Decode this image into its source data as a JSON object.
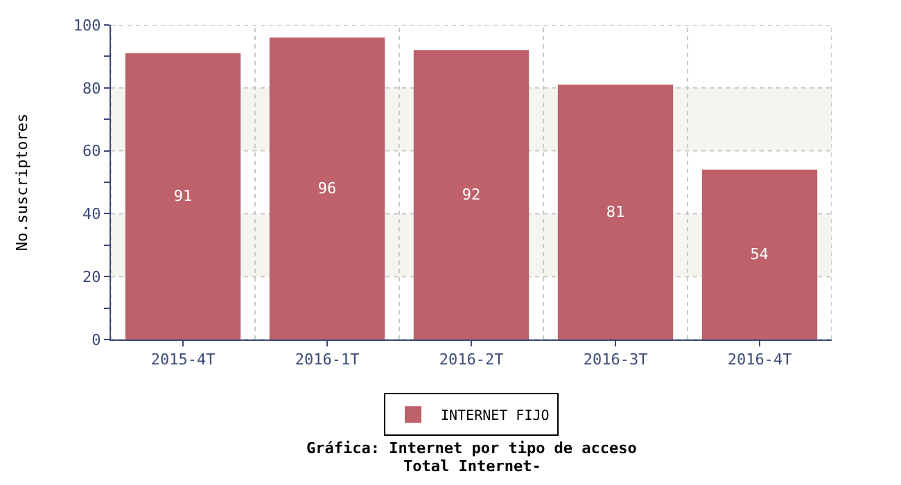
{
  "chart_data": {
    "type": "bar",
    "title": "Gráfica: Internet por tipo de acceso",
    "subtitle": "Total Internet-",
    "ylabel": "No.suscriptores",
    "categories": [
      "2015-4T",
      "2016-1T",
      "2016-2T",
      "2016-3T",
      "2016-4T"
    ],
    "series": [
      {
        "name": "INTERNET FIJO",
        "color": "#bf616a",
        "values": [
          91,
          96,
          92,
          81,
          54
        ]
      }
    ],
    "ylim": [
      0,
      100
    ],
    "yticks": [
      0,
      {
        "value": 10,
        "label": null
      },
      20,
      {
        "value": 30,
        "label": null
      },
      40,
      {
        "value": 50,
        "label": null
      },
      60,
      {
        "value": 70,
        "label": null
      },
      80,
      {
        "value": 90,
        "label": null
      },
      100
    ],
    "bands": [
      {
        "axis": "y",
        "from": 20,
        "to": 40,
        "color": "#f5f5f0"
      },
      {
        "axis": "y",
        "from": 60,
        "to": 80,
        "color": "#f5f5f0"
      }
    ],
    "data_labels": true,
    "grid": true,
    "legend": "bottom"
  }
}
